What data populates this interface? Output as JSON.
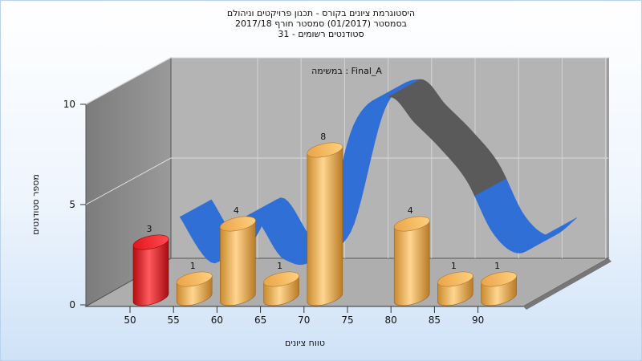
{
  "chart_data": {
    "type": "bar",
    "title_lines": [
      "היסטוגרמת ציונים בקורס - תכנון פרויקטים וניהולם",
      "בסמסטר  (01/2017)  סמסטר חורף 2017/18",
      "סטודנטים רשומים - 31"
    ],
    "annotation": "Final_A : במשימה",
    "xlabel": "טווח ציונים",
    "ylabel": "מספר סטודנטים",
    "x_ticks": [
      "50",
      "55",
      "60",
      "65",
      "70",
      "75",
      "80",
      "85",
      "90"
    ],
    "y_ticks": [
      "0",
      "5",
      "10"
    ],
    "ylim": [
      0,
      10
    ],
    "bars": [
      {
        "x": 50,
        "value": 3,
        "label": "3",
        "highlight": true
      },
      {
        "x": 55,
        "value": 1,
        "label": "1",
        "highlight": false
      },
      {
        "x": 60,
        "value": 4,
        "label": "4",
        "highlight": false
      },
      {
        "x": 65,
        "value": 1,
        "label": "1",
        "highlight": false
      },
      {
        "x": 70,
        "value": 8,
        "label": "8",
        "highlight": false
      },
      {
        "x": 80,
        "value": 4,
        "label": "4",
        "highlight": false
      },
      {
        "x": 85,
        "value": 1,
        "label": "1",
        "highlight": false
      },
      {
        "x": 90,
        "value": 1,
        "label": "1",
        "highlight": false
      }
    ],
    "curve": {
      "x": [
        52,
        56,
        60,
        64,
        68,
        72,
        76,
        79,
        82,
        85,
        88,
        91,
        94
      ],
      "y": [
        3.8,
        1.5,
        3.9,
        1.7,
        2.2,
        8.4,
        9.8,
        8.5,
        7.2,
        5.6,
        3.0,
        2.0,
        2.9
      ]
    },
    "colors": {
      "bar": "#e8a850",
      "bar_highlight": "#e0161c",
      "curve_front": "#2f6fd6",
      "curve_back": "#5a5a5a",
      "wall_left": "#8c8c8c",
      "wall_back": "#b4b4b4",
      "floor": "#b0b0b0"
    }
  }
}
